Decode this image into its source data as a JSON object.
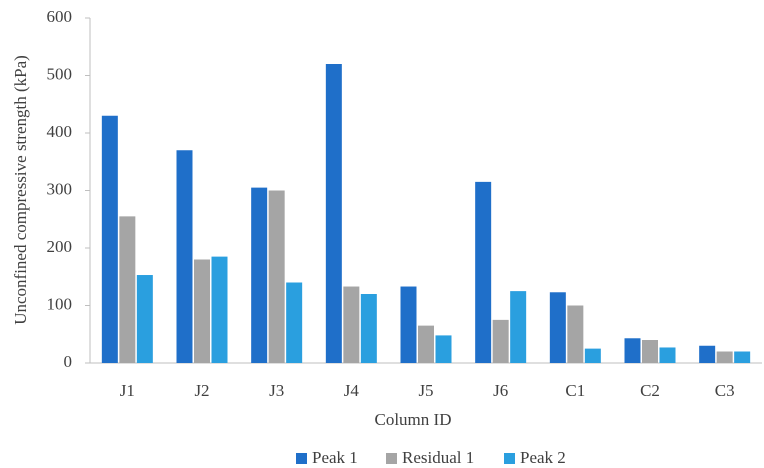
{
  "chart_data": {
    "type": "bar",
    "x_label": "Column ID",
    "y_label": "Unconfined compressive strength (kPa)",
    "categories": [
      "J1",
      "J2",
      "J3",
      "J4",
      "J5",
      "J6",
      "C1",
      "C2",
      "C3"
    ],
    "series": [
      {
        "name": "Peak 1",
        "color": "#1f6fc9",
        "values": [
          430,
          370,
          305,
          520,
          133,
          315,
          123,
          43,
          30
        ]
      },
      {
        "name": "Residual 1",
        "color": "#a5a5a5",
        "values": [
          255,
          180,
          300,
          133,
          65,
          75,
          100,
          40,
          20
        ]
      },
      {
        "name": "Peak 2",
        "color": "#2a9fdf",
        "values": [
          153,
          185,
          140,
          120,
          48,
          125,
          25,
          27,
          20
        ]
      }
    ],
    "ylim": [
      0,
      600
    ],
    "yticks": [
      0,
      100,
      200,
      300,
      400,
      500,
      600
    ],
    "legend": "bottom"
  }
}
